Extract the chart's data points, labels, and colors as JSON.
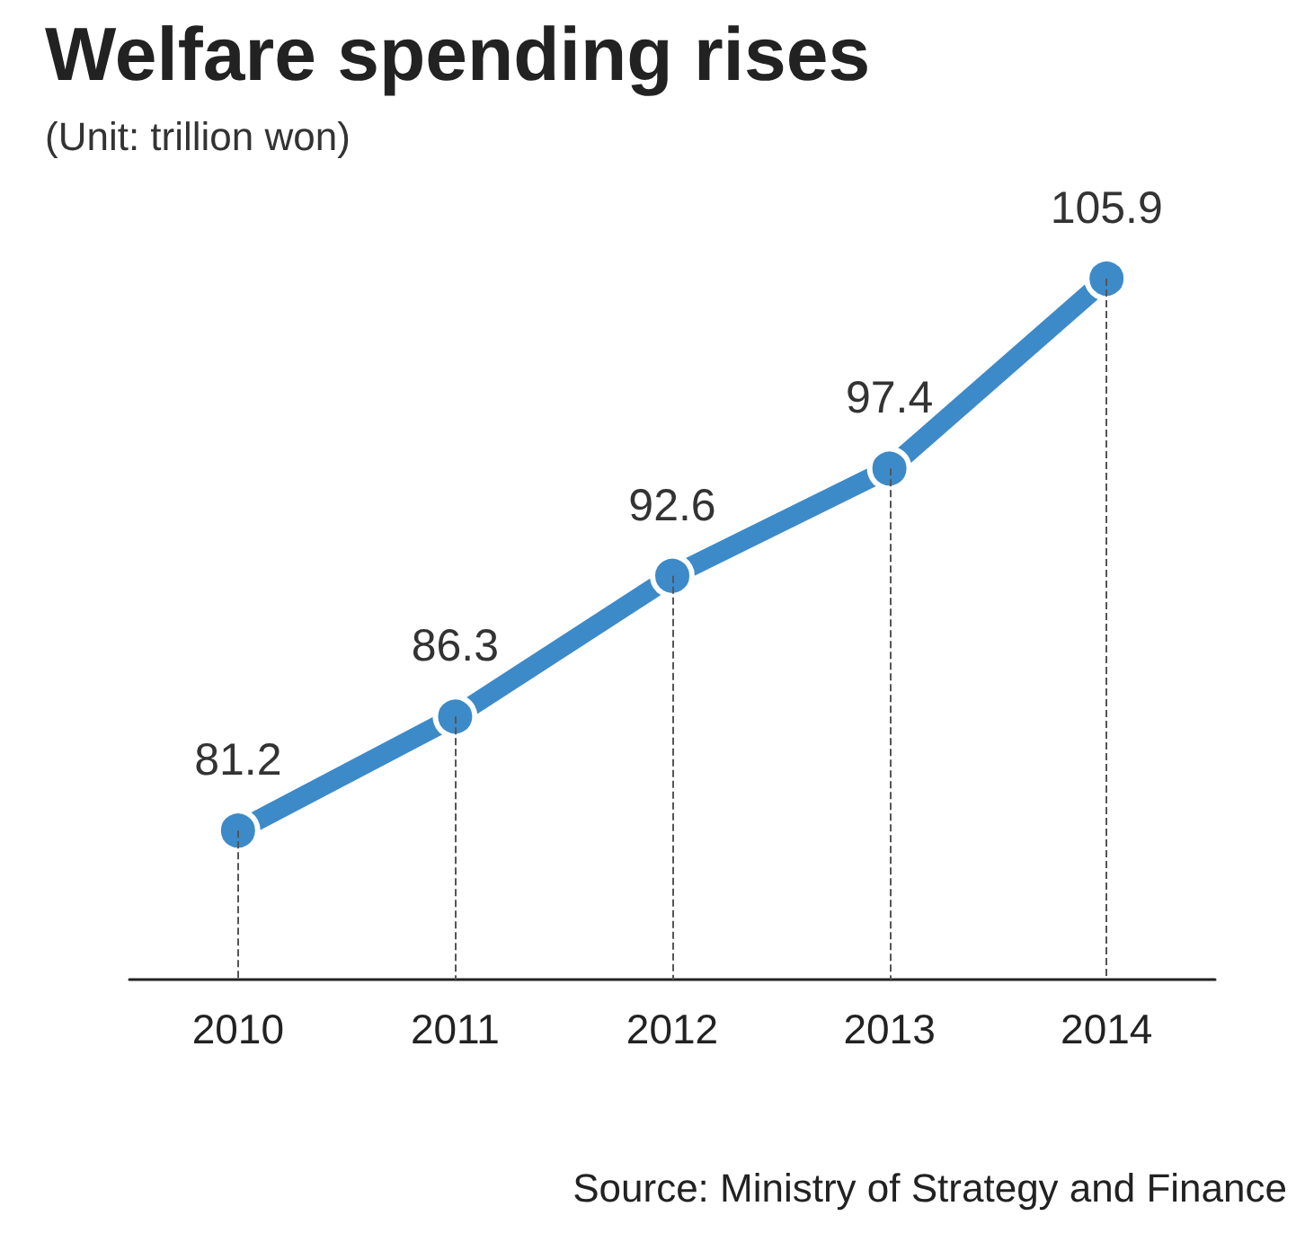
{
  "chart_data": {
    "type": "line",
    "title": "Welfare spending rises",
    "subtitle": "(Unit: trillion won)",
    "categories": [
      "2010",
      "2011",
      "2012",
      "2013",
      "2014"
    ],
    "values": [
      81.2,
      86.3,
      92.6,
      97.4,
      105.9
    ],
    "color": "#3d8ac9",
    "data_labels": true,
    "marker": "circle",
    "line_style": "solid",
    "grid": "x",
    "annotations": [
      "Source: Ministry of Strategy and Finance"
    ]
  }
}
